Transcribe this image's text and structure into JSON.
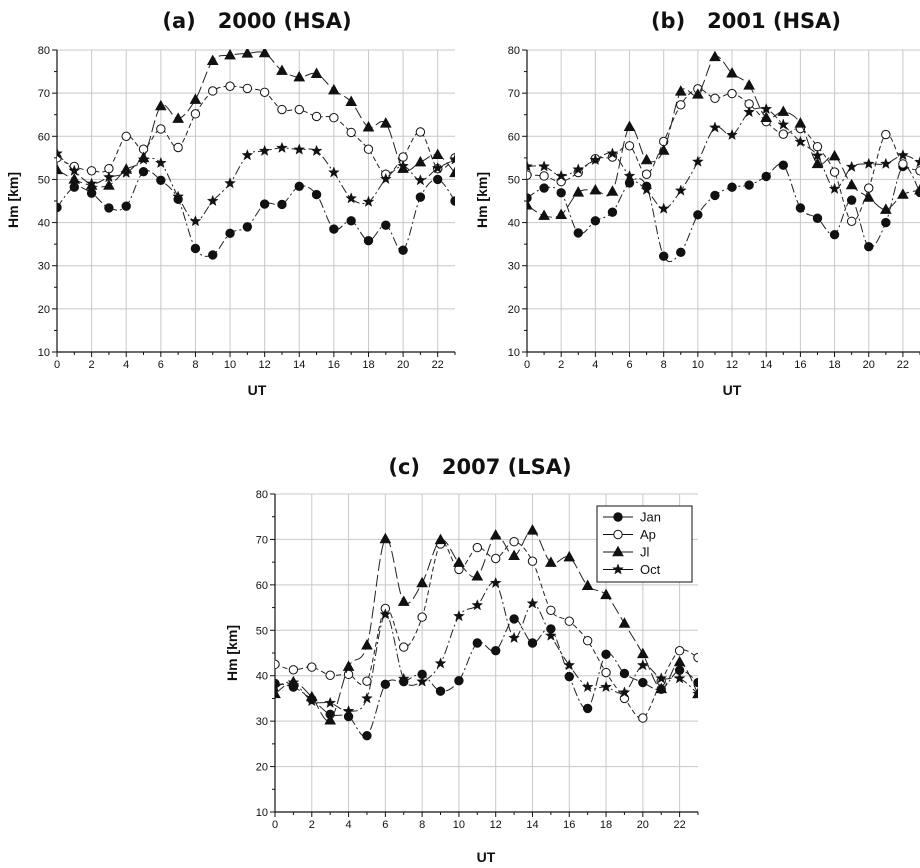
{
  "chart_data": [
    {
      "type": "line",
      "title": "(a)   2000 (HSA)",
      "xlabel": "UT",
      "ylabel": "Hm [km]",
      "xlim": [
        0,
        23
      ],
      "ylim": [
        10,
        80
      ],
      "xticks": [
        "0",
        "2",
        "4",
        "6",
        "8",
        "10",
        "12",
        "14",
        "16",
        "18",
        "20",
        "22"
      ],
      "yticks": [
        "10",
        "20",
        "30",
        "40",
        "50",
        "60",
        "70",
        "80"
      ],
      "grid": true,
      "x": [
        0,
        1,
        2,
        3,
        4,
        5,
        6,
        7,
        8,
        9,
        10,
        11,
        12,
        13,
        14,
        15,
        16,
        17,
        18,
        19,
        20,
        21,
        22,
        23
      ],
      "series": [
        {
          "name": "Jan",
          "values": [
            43.5,
            48.2,
            46.8,
            43.4,
            43.8,
            51.8,
            49.8,
            45.4,
            34.0,
            32.5,
            37.5,
            39.0,
            44.3,
            44.2,
            48.4,
            46.5,
            38.5,
            40.4,
            35.8,
            39.4,
            33.6,
            45.9,
            50.0,
            45.0
          ]
        },
        {
          "name": "Ap",
          "values": [
            55.0,
            53.0,
            52.0,
            52.5,
            60.0,
            57.0,
            61.7,
            57.4,
            65.2,
            70.5,
            71.6,
            71.1,
            70.2,
            66.2,
            66.2,
            64.6,
            64.3,
            60.9,
            57.0,
            51.2,
            55.2,
            61.0,
            52.5,
            55.0
          ]
        },
        {
          "name": "Jl",
          "values": [
            52.2,
            50.0,
            48.6,
            48.6,
            52.3,
            55.0,
            67.0,
            64.1,
            68.5,
            77.5,
            78.8,
            79.2,
            79.3,
            75.2,
            73.7,
            74.5,
            70.7,
            68.0,
            62.1,
            63.0,
            52.5,
            54.0,
            55.7,
            51.5
          ]
        },
        {
          "name": "Oct",
          "values": [
            56.0,
            52.0,
            49.0,
            50.5,
            51.5,
            54.6,
            53.8,
            46.0,
            40.3,
            45.0,
            49.1,
            55.6,
            56.6,
            57.3,
            56.9,
            56.6,
            51.6,
            45.6,
            44.8,
            50.1,
            53.1,
            49.8,
            52.6,
            54.6
          ]
        }
      ]
    },
    {
      "type": "line",
      "title": "(b)   2001 (HSA)",
      "xlabel": "UT",
      "ylabel": "Hm [km]",
      "xlim": [
        0,
        23
      ],
      "ylim": [
        10,
        80
      ],
      "xticks": [
        "0",
        "2",
        "4",
        "6",
        "8",
        "10",
        "12",
        "14",
        "16",
        "18",
        "20",
        "22"
      ],
      "yticks": [
        "10",
        "20",
        "30",
        "40",
        "50",
        "60",
        "70",
        "80"
      ],
      "grid": true,
      "x": [
        0,
        1,
        2,
        3,
        4,
        5,
        6,
        7,
        8,
        9,
        10,
        11,
        12,
        13,
        14,
        15,
        16,
        17,
        18,
        19,
        20,
        21,
        22,
        23
      ],
      "series": [
        {
          "name": "Jan",
          "values": [
            45.7,
            48.0,
            46.9,
            37.6,
            40.4,
            42.4,
            49.2,
            48.4,
            32.2,
            33.1,
            41.8,
            46.3,
            48.2,
            48.7,
            50.7,
            53.3,
            43.4,
            41.0,
            37.2,
            45.2,
            34.4,
            40.0,
            53.0,
            47.0
          ]
        },
        {
          "name": "Ap",
          "values": [
            51.0,
            50.8,
            49.5,
            51.6,
            54.8,
            55.2,
            57.8,
            51.2,
            58.8,
            67.3,
            71.0,
            68.8,
            69.9,
            67.5,
            63.4,
            60.5,
            61.8,
            57.6,
            51.7,
            40.3,
            48.0,
            60.4,
            53.6,
            52.0
          ]
        },
        {
          "name": "Jl",
          "values": [
            44.0,
            41.6,
            41.8,
            47.0,
            47.5,
            47.2,
            62.2,
            54.5,
            56.7,
            70.4,
            69.7,
            78.4,
            74.6,
            71.8,
            64.3,
            65.7,
            63.0,
            53.6,
            55.4,
            48.7,
            45.8,
            43.0,
            46.5,
            47.5
          ]
        },
        {
          "name": "Oct",
          "values": [
            53.0,
            53.0,
            50.8,
            52.3,
            54.5,
            56.0,
            50.8,
            47.6,
            43.2,
            47.4,
            54.1,
            62.0,
            60.3,
            65.6,
            66.3,
            62.7,
            58.7,
            55.5,
            47.8,
            52.9,
            53.6,
            53.6,
            55.6,
            54.0
          ]
        }
      ]
    },
    {
      "type": "line",
      "title": "(c)   2007 (LSA)",
      "xlabel": "UT",
      "ylabel": "Hm [km]",
      "xlim": [
        0,
        23
      ],
      "ylim": [
        10,
        80
      ],
      "xticks": [
        "0",
        "2",
        "4",
        "6",
        "8",
        "10",
        "12",
        "14",
        "16",
        "18",
        "20",
        "22"
      ],
      "yticks": [
        "10",
        "20",
        "30",
        "40",
        "50",
        "60",
        "70",
        "80"
      ],
      "grid": true,
      "legend": "top-right",
      "x": [
        0,
        1,
        2,
        3,
        4,
        5,
        6,
        7,
        8,
        9,
        10,
        11,
        12,
        13,
        14,
        15,
        16,
        17,
        18,
        19,
        20,
        21,
        22,
        23
      ],
      "series": [
        {
          "name": "Jan",
          "values": [
            38.3,
            37.5,
            34.8,
            31.5,
            31.0,
            26.8,
            38.1,
            38.7,
            40.3,
            36.6,
            38.9,
            47.2,
            45.5,
            52.5,
            47.2,
            50.3,
            39.8,
            32.8,
            44.7,
            40.5,
            38.5,
            37.0,
            41.2,
            38.5
          ]
        },
        {
          "name": "Ap",
          "values": [
            42.5,
            41.3,
            41.9,
            40.1,
            40.3,
            38.8,
            54.8,
            46.3,
            52.9,
            69.0,
            63.4,
            68.2,
            65.8,
            69.5,
            65.2,
            54.4,
            52.0,
            47.7,
            40.7,
            35.0,
            30.7,
            38.8,
            45.5,
            44.0
          ]
        },
        {
          "name": "Jl",
          "values": [
            36.0,
            38.6,
            35.3,
            30.2,
            42.0,
            46.7,
            70.1,
            56.3,
            60.4,
            69.9,
            64.9,
            61.9,
            70.9,
            66.4,
            72.0,
            64.9,
            66.1,
            59.8,
            57.8,
            51.5,
            44.8,
            37.1,
            43.0,
            36.0
          ]
        },
        {
          "name": "Oct",
          "values": [
            37.5,
            38.5,
            34.4,
            34.0,
            32.2,
            35.0,
            53.5,
            39.3,
            38.7,
            42.7,
            53.1,
            55.5,
            60.4,
            48.3,
            55.9,
            48.8,
            42.3,
            37.5,
            37.5,
            36.3,
            42.3,
            39.4,
            39.4,
            36.0
          ]
        }
      ]
    }
  ]
}
